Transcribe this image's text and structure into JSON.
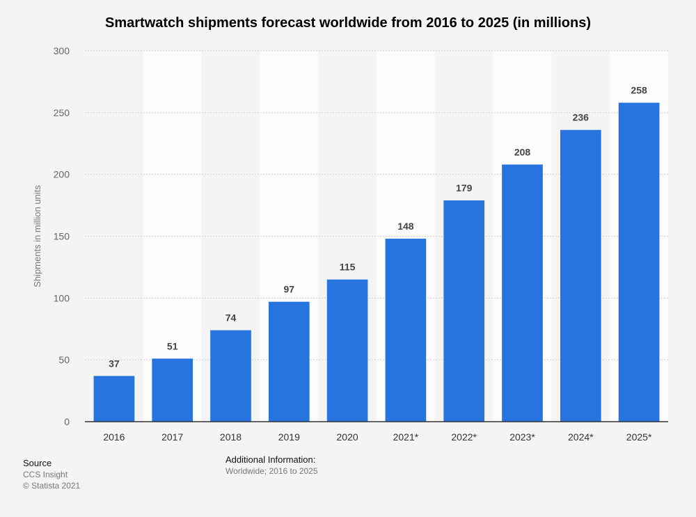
{
  "chart_data": {
    "type": "bar",
    "title": "Smartwatch shipments forecast worldwide from 2016 to 2025 (in millions)",
    "xlabel": "",
    "ylabel": "Shipments in million units",
    "categories": [
      "2016",
      "2017",
      "2018",
      "2019",
      "2020",
      "2021*",
      "2022*",
      "2023*",
      "2024*",
      "2025*"
    ],
    "values": [
      37,
      51,
      74,
      97,
      115,
      148,
      179,
      208,
      236,
      258
    ],
    "ylim": [
      0,
      300
    ],
    "yticks": [
      0,
      50,
      100,
      150,
      200,
      250,
      300
    ],
    "grid": true,
    "colors": {
      "bar": "#2874de",
      "band_light": "#fcfcfc",
      "band_dark": "#f4f4f4"
    }
  },
  "footer": {
    "source_heading": "Source",
    "source_lines": [
      "CCS Insight",
      "© Statista 2021"
    ],
    "info_heading": "Additional Information:",
    "info_text": "Worldwide; 2016 to 2025"
  }
}
